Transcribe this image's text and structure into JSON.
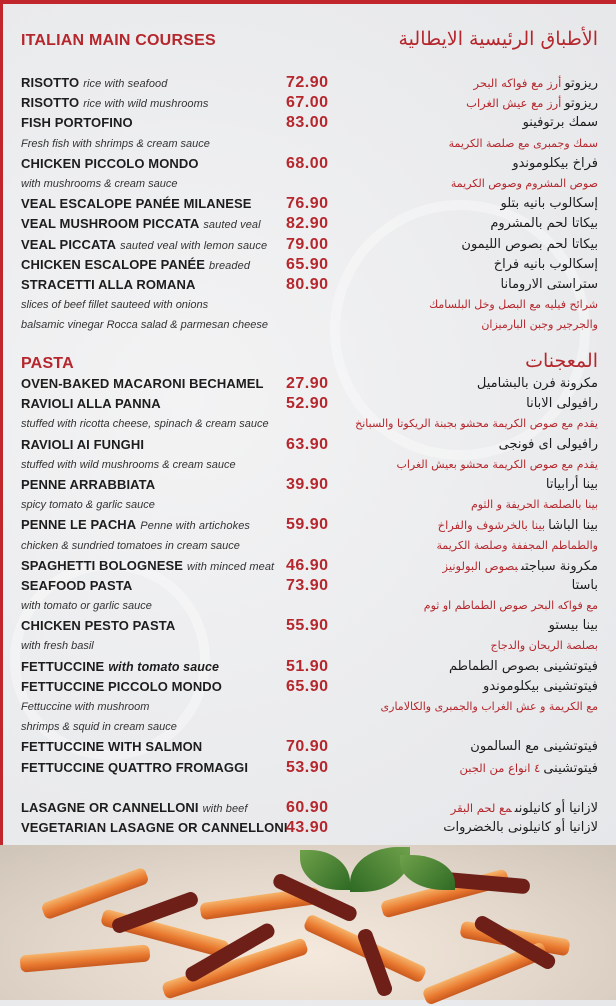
{
  "colors": {
    "accent": "#b5272d",
    "text": "#1d1d1d"
  },
  "main_courses": {
    "title": "ITALIAN MAIN COURSES",
    "title_ar": "الأطباق الرئيسية الايطالية",
    "rows": [
      {
        "en": "RISOTTO",
        "note": "rice with seafood",
        "price": "72.90",
        "ar": "ريزوتو",
        "ar_note": "أرز مع فواكه البحر"
      },
      {
        "en": "RISOTTO",
        "note": "rice with wild mushrooms",
        "price": "67.00",
        "ar": "ريزوتو",
        "ar_note": "أرز مع عيش الغراب"
      },
      {
        "en": "FISH PORTOFINO",
        "price": "83.00",
        "ar": "سمك برتوفينو"
      },
      {
        "desc": "Fresh fish with shrimps & cream sauce",
        "ar_desc": "سمك وجمبرى مع صلصة الكريمة"
      },
      {
        "en": "CHICKEN PICCOLO MONDO",
        "price": "68.00",
        "ar": "فراخ بيكلوموندو"
      },
      {
        "desc": "with mushrooms & cream sauce",
        "ar_desc": "صوص المشروم وصوص الكريمة"
      },
      {
        "en": "VEAL ESCALOPE PANÉE MILANESE",
        "price": "76.90",
        "ar": "إسكالوب بانيه بتلو"
      },
      {
        "en": "VEAL MUSHROOM PICCATA",
        "note": "sauted veal",
        "price": "82.90",
        "ar": "بيكاتا لحم بالمشروم"
      },
      {
        "en": "VEAL PICCATA",
        "note": "sauted veal with lemon sauce",
        "price": "79.00",
        "ar": "بيكاتا لحم بصوص الليمون"
      },
      {
        "en": "CHICKEN ESCALOPE PANÉE",
        "note": "breaded",
        "price": "65.90",
        "ar": "إسكالوب بانيه فراخ"
      },
      {
        "en": "STRACETTI ALLA ROMANA",
        "price": "80.90",
        "ar": "ستراستى الارومانا"
      },
      {
        "desc": "slices of beef fillet sauteed with onions",
        "ar_desc": "شرائح فيليه مع البصل وخل البلسامك"
      },
      {
        "desc": "balsamic vinegar Rocca salad & parmesan cheese",
        "ar_desc": "والجرجير وجبن البارميزان"
      }
    ]
  },
  "pasta": {
    "title": "PASTA",
    "title_ar": "المعجنات",
    "rows": [
      {
        "en": "OVEN-BAKED MACARONI BECHAMEL",
        "price": "27.90",
        "ar": "مكرونة فرن بالبشاميل"
      },
      {
        "en": "RAVIOLI ALLA PANNA",
        "price": "52.90",
        "ar": "رافيولى الابانا"
      },
      {
        "desc": "stuffed with ricotta cheese, spinach & cream sauce",
        "ar_desc": "يقدم مع صوص الكريمة محشو بجبنة الريكوتا والسبانخ"
      },
      {
        "en": "RAVIOLI AI FUNGHI",
        "price": "63.90",
        "ar": "رافيولى اى فونجى"
      },
      {
        "desc": "stuffed with wild mushrooms & cream sauce",
        "ar_desc": "يقدم مع صوص الكريمة محشو بعيش الغراب"
      },
      {
        "en": "PENNE ARRABBIATA",
        "price": "39.90",
        "ar": "بينا أرابياتا"
      },
      {
        "desc": "spicy tomato & garlic sauce",
        "ar_desc": "بينا بالصلصة الحريفة و الثوم"
      },
      {
        "en": "PENNE LE PACHA",
        "note": "Penne with artichokes",
        "price": "59.90",
        "ar": "بينا الباشا",
        "ar_note": "بينا بالخرشوف والفراخ"
      },
      {
        "desc": "chicken & sundried tomatoes in cream sauce",
        "ar_desc": "والطماطم المجففة وصلصة الكريمة"
      },
      {
        "en": "SPAGHETTI BOLOGNESE",
        "note": "with minced meat",
        "price": "46.90",
        "ar": "مكرونة سباجتى",
        "ar_note": "بصوص البولونيز"
      },
      {
        "en": "SEAFOOD PASTA",
        "price": "73.90",
        "ar": "باستا"
      },
      {
        "desc": "with tomato or garlic sauce",
        "ar_desc": "مع فواكه البحر صوص الطماطم او ثوم"
      },
      {
        "en": "CHICKEN PESTO PASTA",
        "price": "55.90",
        "ar": "بينا بيستو"
      },
      {
        "desc": "with fresh basil",
        "ar_desc": "بصلصة الريحان والدجاج"
      },
      {
        "en": "FETTUCCINE",
        "note": "with tomato sauce",
        "note_bold": true,
        "price": "51.90",
        "ar": "فيتوتشينى بصوص الطماطم"
      },
      {
        "en": "FETTUCCINE PICCOLO MONDO",
        "price": "65.90",
        "ar": "فيتوتشينى بيكلوموندو"
      },
      {
        "desc": "Fettuccine with mushroom",
        "ar_desc": "مع الكريمة و عش الغراب والجمبرى والكالامارى"
      },
      {
        "desc": " shrimps & squid in cream sauce"
      },
      {
        "en": "FETTUCCINE WITH SALMON",
        "price": "70.90",
        "ar": "فيتوتشينى مع السالمون"
      },
      {
        "en": "FETTUCCINE QUATTRO FROMAGGI",
        "price": "53.90",
        "ar": "فيتوتشينى",
        "ar_note": "٤ انواع من الجبن"
      },
      {},
      {
        "en": "LASAGNE OR CANNELLONI",
        "note": "with beef",
        "price": "60.90",
        "ar": "لازانيا أو كانيلونى",
        "ar_note": "مع لحم البقر"
      },
      {
        "en": "VEGETARIAN LASAGNE OR CANNELLONI",
        "price": "43.90",
        "ar": "لازانيا أو كانيلونى بالخضروات"
      }
    ]
  }
}
